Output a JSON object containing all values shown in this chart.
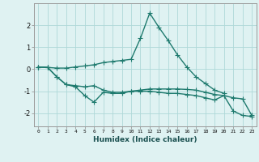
{
  "xlabel": "Humidex (Indice chaleur)",
  "background_color": "#dff2f2",
  "line_color": "#1e7a6e",
  "grid_color": "#afd8d8",
  "xlim": [
    -0.5,
    23.5
  ],
  "ylim": [
    -2.6,
    3.0
  ],
  "x": [
    0,
    1,
    2,
    3,
    4,
    5,
    6,
    7,
    8,
    9,
    10,
    11,
    12,
    13,
    14,
    15,
    16,
    17,
    18,
    19,
    20,
    21,
    22,
    23
  ],
  "line1_x": [
    0,
    1,
    2,
    3,
    4,
    5,
    6,
    7,
    8,
    9,
    10,
    11,
    12,
    13,
    14,
    15,
    16,
    17,
    18,
    19,
    20
  ],
  "line1_y": [
    0.1,
    0.08,
    0.05,
    0.05,
    0.1,
    0.15,
    0.2,
    0.3,
    0.35,
    0.4,
    0.45,
    1.4,
    2.55,
    1.9,
    1.3,
    0.65,
    0.1,
    -0.35,
    -0.65,
    -0.95,
    -1.1
  ],
  "line2_x": [
    0,
    1,
    2,
    3,
    4,
    5,
    6,
    7,
    8,
    9,
    10,
    11,
    12,
    13,
    14,
    15,
    16,
    17,
    18,
    19,
    20,
    21,
    22,
    23
  ],
  "line2_y": [
    0.1,
    0.08,
    -0.35,
    -0.7,
    -0.75,
    -0.8,
    -0.75,
    -0.95,
    -1.05,
    -1.05,
    -1.0,
    -1.0,
    -1.0,
    -1.05,
    -1.1,
    -1.1,
    -1.15,
    -1.2,
    -1.3,
    -1.4,
    -1.2,
    -1.9,
    -2.1,
    -2.15
  ],
  "line3_x": [
    0,
    1,
    2,
    3,
    4,
    5,
    6,
    7,
    8,
    9,
    10,
    11,
    12,
    13,
    14,
    15,
    16,
    17,
    18,
    19,
    20,
    21,
    22,
    23
  ],
  "line3_y": [
    0.1,
    0.08,
    -0.35,
    -0.7,
    -0.8,
    -1.2,
    -1.5,
    -1.05,
    -1.1,
    -1.1,
    -1.0,
    -0.95,
    -0.9,
    -0.9,
    -0.9,
    -0.9,
    -0.92,
    -0.95,
    -1.05,
    -1.15,
    -1.2,
    -1.3,
    -1.35,
    -2.1
  ],
  "marker": "+",
  "markersize": 4,
  "linewidth": 1.0,
  "yticks": [
    -2,
    -1,
    0,
    1,
    2
  ],
  "xtick_labels": [
    "0",
    "1",
    "2",
    "3",
    "4",
    "5",
    "6",
    "7",
    "8",
    "9",
    "10",
    "11",
    "12",
    "13",
    "14",
    "15",
    "16",
    "17",
    "18",
    "19",
    "20",
    "21",
    "22",
    "23"
  ]
}
